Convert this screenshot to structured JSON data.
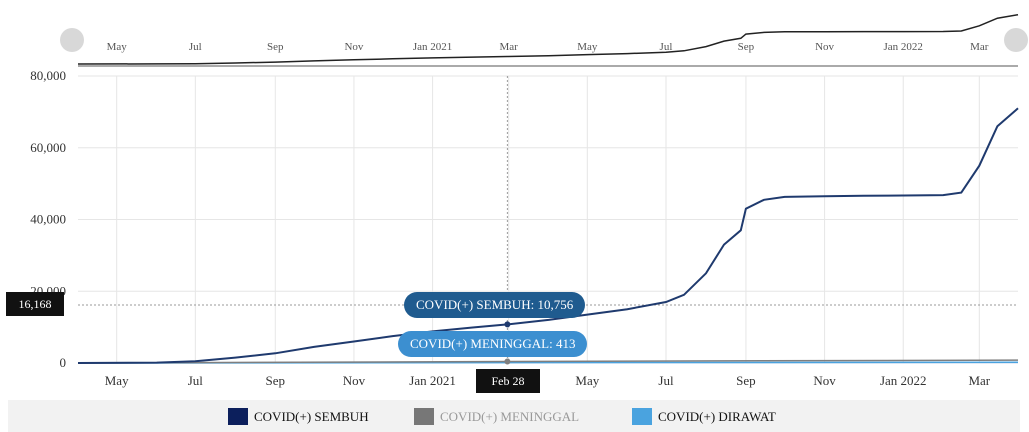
{
  "chart_data": {
    "type": "line",
    "x_tick_labels": [
      "May",
      "Jul",
      "Sep",
      "Nov",
      "Jan 2021",
      "Mar",
      "May",
      "Jul",
      "Sep",
      "Nov",
      "Jan 2022",
      "Mar"
    ],
    "navigator_tick_labels": [
      "May",
      "Jul",
      "Sep",
      "Nov",
      "Jan 2021",
      "Mar",
      "May",
      "Jul",
      "Sep",
      "Nov",
      "Jan 2022",
      "Mar"
    ],
    "y_tick_labels": [
      "80,000",
      "60,000",
      "40,000",
      "20,000",
      "0"
    ],
    "ylim": [
      0,
      80000
    ],
    "xlim": [
      "2020-04-01",
      "2022-03-31"
    ],
    "grid": true,
    "legend_position": "bottom",
    "series": [
      {
        "name": "COVID(+) SEMBUH",
        "color": "#1f3a6e",
        "points": [
          [
            "2020-04-01",
            0
          ],
          [
            "2020-06-01",
            100
          ],
          [
            "2020-07-01",
            500
          ],
          [
            "2020-08-01",
            1500
          ],
          [
            "2020-09-01",
            2700
          ],
          [
            "2020-10-01",
            4500
          ],
          [
            "2020-11-01",
            6000
          ],
          [
            "2020-12-01",
            7500
          ],
          [
            "2021-01-01",
            8800
          ],
          [
            "2021-02-01",
            9900
          ],
          [
            "2021-02-28",
            10756
          ],
          [
            "2021-04-01",
            12000
          ],
          [
            "2021-05-01",
            13500
          ],
          [
            "2021-06-01",
            15000
          ],
          [
            "2021-07-01",
            17000
          ],
          [
            "2021-07-15",
            19000
          ],
          [
            "2021-08-01",
            25000
          ],
          [
            "2021-08-15",
            33000
          ],
          [
            "2021-08-28",
            37000
          ],
          [
            "2021-09-01",
            43000
          ],
          [
            "2021-09-15",
            45500
          ],
          [
            "2021-10-01",
            46300
          ],
          [
            "2021-11-01",
            46500
          ],
          [
            "2021-12-01",
            46600
          ],
          [
            "2022-01-01",
            46700
          ],
          [
            "2022-02-01",
            46800
          ],
          [
            "2022-02-15",
            47500
          ],
          [
            "2022-03-01",
            55000
          ],
          [
            "2022-03-15",
            66000
          ],
          [
            "2022-03-31",
            71000
          ]
        ]
      },
      {
        "name": "COVID(+) MENINGGAL",
        "color": "#7f7f7f",
        "points": [
          [
            "2020-04-01",
            0
          ],
          [
            "2021-02-28",
            413
          ],
          [
            "2022-03-31",
            800
          ]
        ]
      },
      {
        "name": "COVID(+) DIRAWAT",
        "color": "#4aa3df",
        "points": [
          [
            "2020-04-01",
            0
          ],
          [
            "2021-02-28",
            100
          ],
          [
            "2022-03-31",
            200
          ]
        ]
      }
    ],
    "crosshair": {
      "date_label": "Feb 28",
      "y_label": "16,168",
      "tooltips": [
        "COVID(+) SEMBUH: 10,756",
        "COVID(+) MENINGGAL: 413"
      ]
    },
    "legend": [
      {
        "label": "COVID(+) SEMBUH",
        "color": "#0c1f5c",
        "text_color": "#111111"
      },
      {
        "label": "COVID(+) MENINGGAL",
        "color": "#777777",
        "text_color": "#999999"
      },
      {
        "label": "COVID(+) DIRAWAT",
        "color": "#4aa3df",
        "text_color": "#111111"
      }
    ]
  }
}
